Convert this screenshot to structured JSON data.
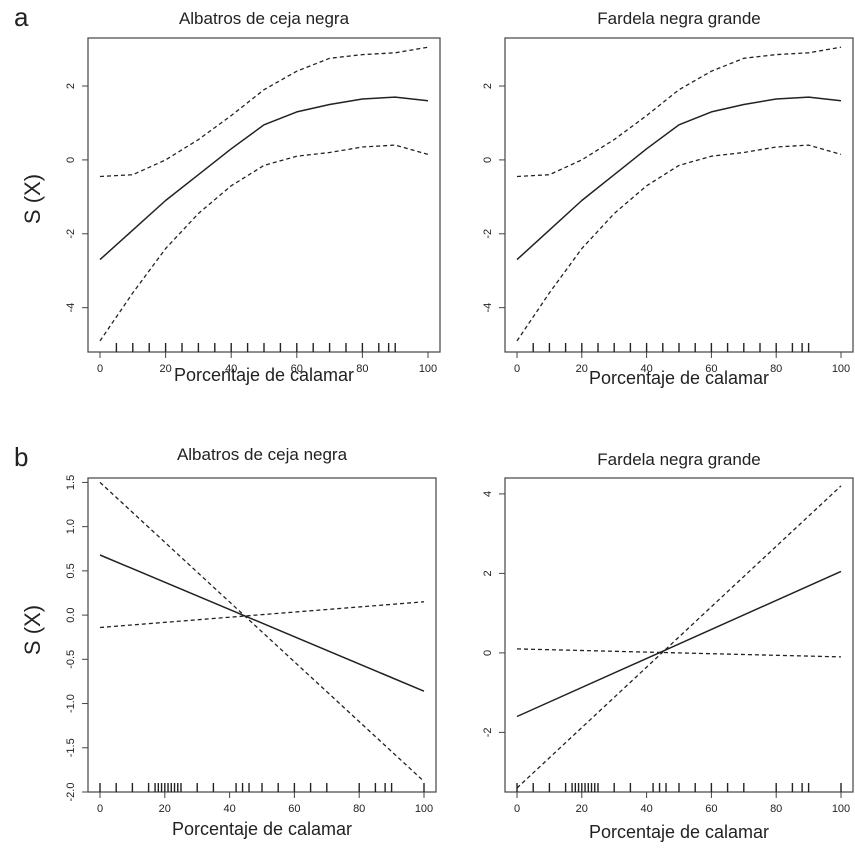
{
  "figure": {
    "panel_a_letter": "a",
    "panel_b_letter": "b",
    "ylabel_a": "S (X)",
    "ylabel_b": "S (X)"
  },
  "chart_data": [
    {
      "id": "a-left",
      "type": "line",
      "title": "Albatros de ceja negra",
      "xlabel": "Porcentaje de calamar",
      "ylabel": "S (X)",
      "xlim": [
        0,
        100
      ],
      "ylim": [
        -5.2,
        3.3
      ],
      "xticks": [
        0,
        20,
        40,
        60,
        80,
        100
      ],
      "yticks": [
        -4,
        -2,
        0,
        2
      ],
      "rug": [
        5,
        10,
        15,
        20,
        25,
        30,
        35,
        40,
        45,
        50,
        55,
        60,
        65,
        70,
        75,
        80,
        85,
        88,
        90
      ],
      "series": [
        {
          "style": "solid",
          "x": [
            0,
            10,
            20,
            30,
            40,
            50,
            60,
            70,
            80,
            90,
            100
          ],
          "y": [
            -2.7,
            -1.9,
            -1.1,
            -0.4,
            0.3,
            0.95,
            1.3,
            1.5,
            1.65,
            1.7,
            1.6
          ]
        },
        {
          "style": "dashed",
          "x": [
            0,
            10,
            20,
            30,
            40,
            50,
            60,
            70,
            80,
            90,
            100
          ],
          "y": [
            -0.45,
            -0.4,
            0.0,
            0.55,
            1.2,
            1.9,
            2.4,
            2.75,
            2.85,
            2.9,
            3.05
          ]
        },
        {
          "style": "dashed",
          "x": [
            0,
            10,
            20,
            30,
            40,
            50,
            60,
            70,
            80,
            90,
            100
          ],
          "y": [
            -4.9,
            -3.6,
            -2.4,
            -1.45,
            -0.7,
            -0.15,
            0.1,
            0.2,
            0.35,
            0.4,
            0.15
          ]
        }
      ]
    },
    {
      "id": "a-right",
      "type": "line",
      "title": "Fardela negra grande",
      "xlabel": "Porcentaje de calamar",
      "ylabel": "S (X)",
      "xlim": [
        0,
        100
      ],
      "ylim": [
        -5.2,
        3.3
      ],
      "xticks": [
        0,
        20,
        40,
        60,
        80,
        100
      ],
      "yticks": [
        -4,
        -2,
        0,
        2
      ],
      "rug": [
        5,
        10,
        15,
        20,
        25,
        30,
        35,
        40,
        45,
        50,
        55,
        60,
        65,
        70,
        75,
        80,
        85,
        88,
        90
      ],
      "series": [
        {
          "style": "solid",
          "x": [
            0,
            10,
            20,
            30,
            40,
            50,
            60,
            70,
            80,
            90,
            100
          ],
          "y": [
            -2.7,
            -1.9,
            -1.1,
            -0.4,
            0.3,
            0.95,
            1.3,
            1.5,
            1.65,
            1.7,
            1.6
          ]
        },
        {
          "style": "dashed",
          "x": [
            0,
            10,
            20,
            30,
            40,
            50,
            60,
            70,
            80,
            90,
            100
          ],
          "y": [
            -0.45,
            -0.4,
            0.0,
            0.55,
            1.2,
            1.9,
            2.4,
            2.75,
            2.85,
            2.9,
            3.05
          ]
        },
        {
          "style": "dashed",
          "x": [
            0,
            10,
            20,
            30,
            40,
            50,
            60,
            70,
            80,
            90,
            100
          ],
          "y": [
            -4.9,
            -3.6,
            -2.4,
            -1.45,
            -0.7,
            -0.15,
            0.1,
            0.2,
            0.35,
            0.4,
            0.15
          ]
        }
      ]
    },
    {
      "id": "b-left",
      "type": "line",
      "title": "Albatros de ceja negra",
      "xlabel": "Porcentaje de calamar",
      "ylabel": "S (X)",
      "xlim": [
        0,
        100
      ],
      "ylim": [
        -2.0,
        1.55
      ],
      "xticks": [
        0,
        20,
        40,
        60,
        80,
        100
      ],
      "yticks": [
        "-2.0",
        "-1.5",
        "-1.0",
        "-0.5",
        "0.0",
        "0.5",
        "1.0",
        "1.5"
      ],
      "rug": [
        0,
        5,
        10,
        15,
        17,
        18,
        19,
        20,
        21,
        22,
        23,
        24,
        25,
        30,
        35,
        42,
        44,
        46,
        50,
        55,
        60,
        65,
        70,
        80,
        85,
        88,
        90,
        100
      ],
      "series": [
        {
          "style": "solid",
          "x": [
            0,
            100
          ],
          "y": [
            0.68,
            -0.86
          ]
        },
        {
          "style": "dashed",
          "x": [
            0,
            100
          ],
          "y": [
            1.5,
            -1.88
          ]
        },
        {
          "style": "dashed",
          "x": [
            0,
            100
          ],
          "y": [
            -0.14,
            0.15
          ]
        }
      ]
    },
    {
      "id": "b-right",
      "type": "line",
      "title": "Fardela negra grande",
      "xlabel": "Porcentaje de calamar",
      "ylabel": "S (X)",
      "xlim": [
        0,
        100
      ],
      "ylim": [
        -3.5,
        4.4
      ],
      "xticks": [
        0,
        20,
        40,
        60,
        80,
        100
      ],
      "yticks": [
        -2,
        0,
        2,
        4
      ],
      "rug": [
        0,
        5,
        10,
        15,
        17,
        18,
        19,
        20,
        21,
        22,
        23,
        24,
        25,
        30,
        35,
        42,
        44,
        46,
        50,
        55,
        60,
        65,
        70,
        80,
        85,
        88,
        90,
        100
      ],
      "series": [
        {
          "style": "solid",
          "x": [
            0,
            100
          ],
          "y": [
            -1.6,
            2.05
          ]
        },
        {
          "style": "dashed",
          "x": [
            0,
            100
          ],
          "y": [
            -3.4,
            4.2
          ]
        },
        {
          "style": "dashed",
          "x": [
            0,
            100
          ],
          "y": [
            0.1,
            -0.1
          ]
        }
      ]
    }
  ]
}
